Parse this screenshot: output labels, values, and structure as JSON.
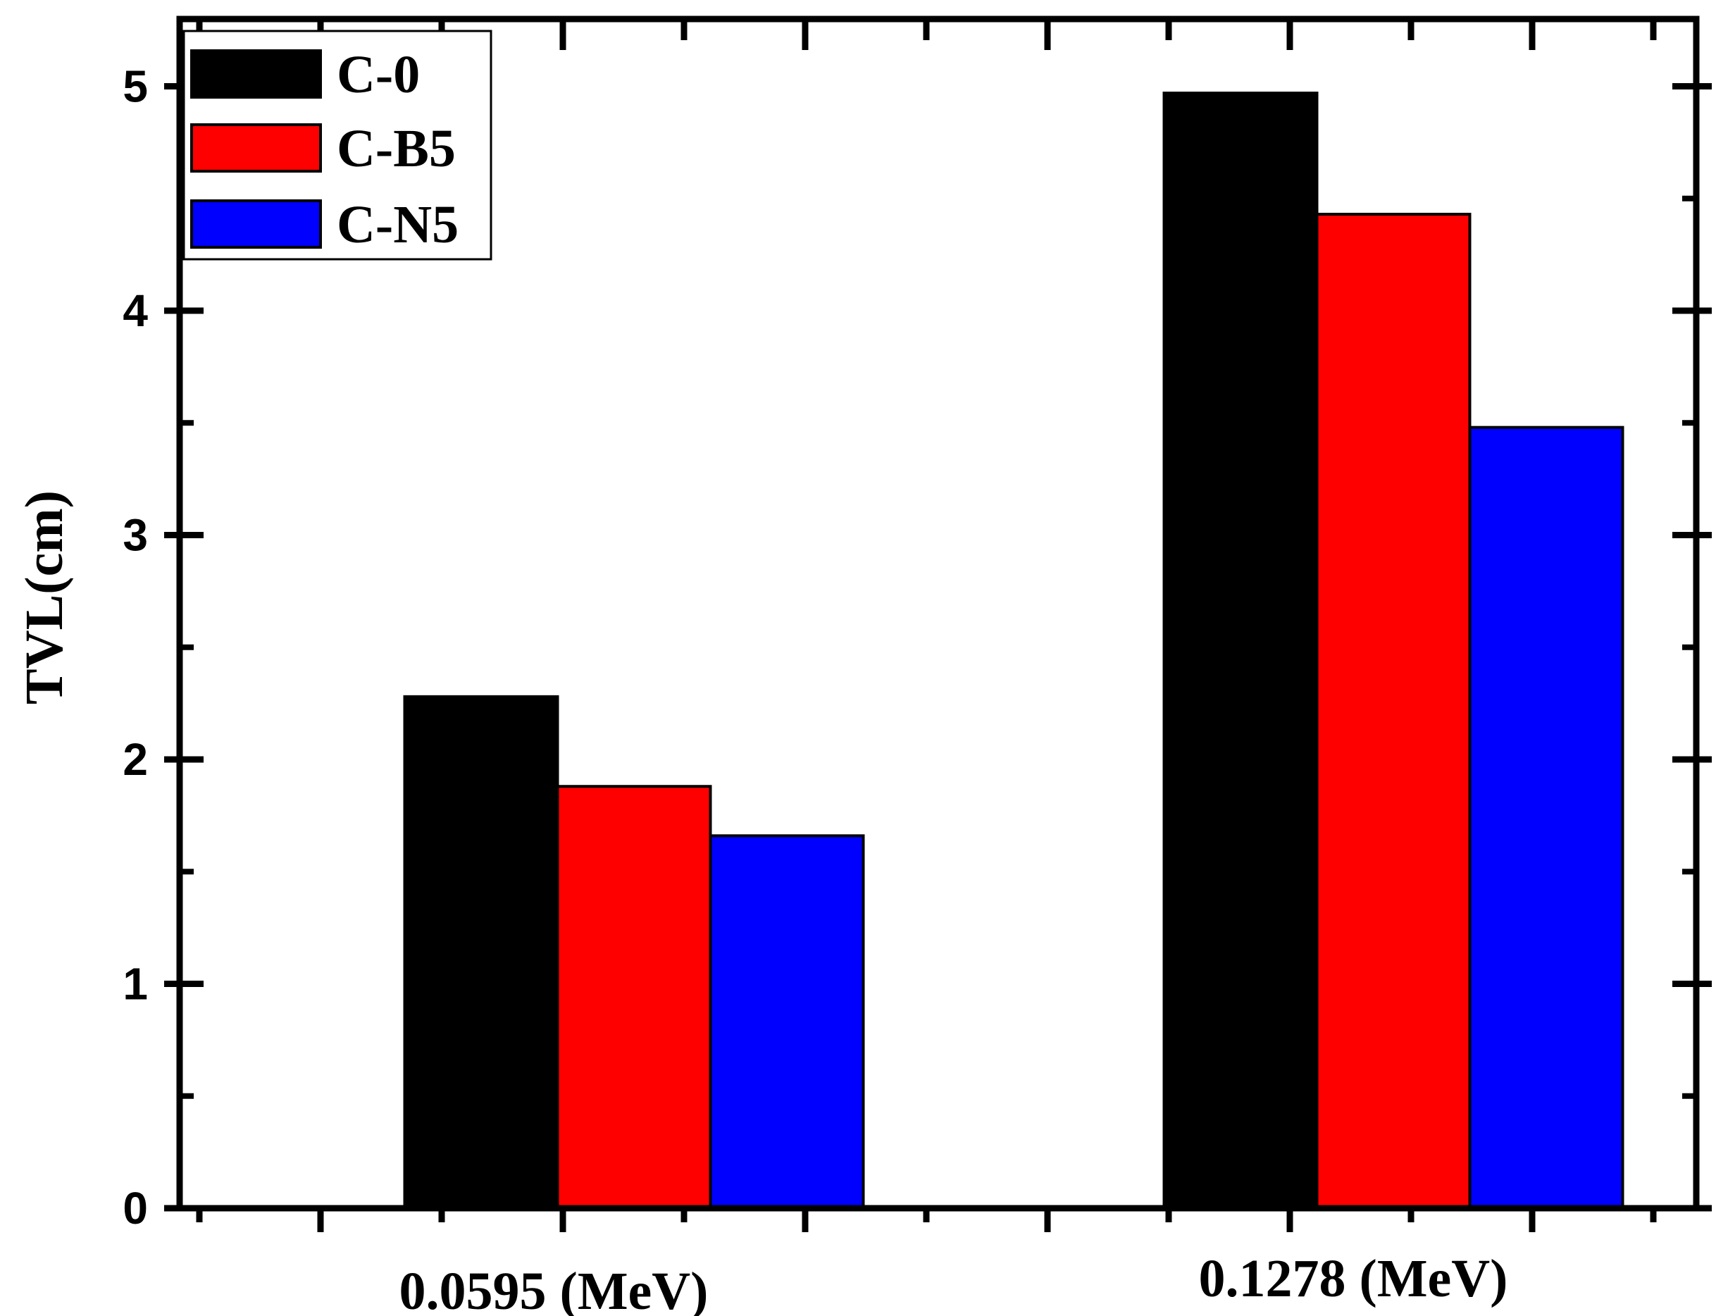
{
  "chart_data": {
    "type": "bar",
    "title": "",
    "xlabel": "",
    "ylabel": "TVL(cm)",
    "categories": [
      "0.0595 (MeV)",
      "0.1278 (MeV)"
    ],
    "series": [
      {
        "name": "C-0",
        "color": "#000000",
        "values": [
          2.28,
          4.97
        ]
      },
      {
        "name": "C-B5",
        "color": "#ff0000",
        "values": [
          1.88,
          4.43
        ]
      },
      {
        "name": "C-N5",
        "color": "#0000ff",
        "values": [
          1.66,
          3.48
        ]
      }
    ],
    "ylim": [
      0,
      5.3
    ],
    "yticks": [
      0,
      1,
      2,
      3,
      4,
      5
    ],
    "yticks_minor": [
      0.5,
      1.5,
      2.5,
      3.5,
      4.5
    ],
    "ytick_labels": [
      "0",
      "1",
      "2",
      "3",
      "4",
      "5"
    ],
    "grid": false,
    "legend_position": "top-left"
  }
}
